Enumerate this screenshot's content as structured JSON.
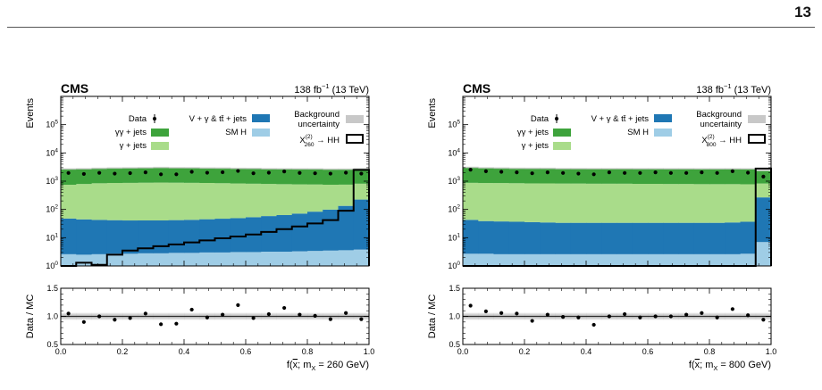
{
  "page_number": "13",
  "colors": {
    "data": "#000000",
    "gg_jets": "#3ea33c",
    "g_jets": "#a9dc8a",
    "vg": "#1f77b4",
    "smh": "#9fcde6",
    "uncertainty": "#c8c8c8",
    "signal": "#000000"
  },
  "chart_data": [
    {
      "type": "area",
      "experiment": "CMS",
      "lumi": "138 fb",
      "lumi_sup": "−1",
      "energy": " (13 TeV)",
      "ylabel": "Events",
      "xlabel_prefix": "f(",
      "xlabel_sym": "x",
      "xlabel_mid": "; m",
      "xlabel_sub": "X",
      "xlabel_suffix": " = 260 GeV)",
      "ratio_ylabel": "Data / MC",
      "yscale": "log",
      "ylim": [
        1,
        1000000
      ],
      "xlim": [
        0,
        1
      ],
      "ratio_ylim": [
        0.5,
        1.5
      ],
      "xticks": [
        "0.0",
        "0.2",
        "0.4",
        "0.6",
        "0.8",
        "1.0"
      ],
      "yticks": [
        "10",
        "10",
        "10",
        "10",
        "10",
        "10"
      ],
      "ytick_exps": [
        "0",
        "1",
        "2",
        "3",
        "4",
        "5"
      ],
      "ratio_yticks": [
        "0.5",
        "1.0",
        "1.5"
      ],
      "legend": {
        "data": "Data",
        "gg_jets": "γγ + jets",
        "g_jets": "γ + jets",
        "vg": "V + γ & tt̄ + jets",
        "smh": "SM H",
        "unc_line1": "Background",
        "unc_line2": "uncertainty",
        "signal_prefix": "X",
        "signal_sup": "(2)",
        "signal_sub": "260",
        "signal_suffix": " → HH"
      },
      "bins": 20,
      "stack": {
        "smh": [
          2.6,
          2.5,
          2.6,
          2.7,
          2.7,
          2.8,
          2.8,
          2.9,
          2.9,
          3.0,
          3.0,
          3.1,
          3.1,
          3.2,
          3.2,
          3.3,
          3.4,
          3.5,
          3.6,
          3.8
        ],
        "vg": [
          45,
          42,
          40,
          39,
          38,
          38,
          38,
          39,
          40,
          42,
          44,
          46,
          50,
          55,
          60,
          68,
          80,
          95,
          130,
          220
        ],
        "g_jets": [
          700,
          750,
          800,
          820,
          830,
          840,
          850,
          840,
          830,
          820,
          800,
          780,
          760,
          740,
          720,
          700,
          680,
          650,
          620,
          590
        ],
        "gg_jets": [
          1950,
          1950,
          2000,
          2050,
          2080,
          2100,
          2150,
          2100,
          2100,
          2050,
          2050,
          2000,
          2000,
          1950,
          1950,
          1950,
          1950,
          1900,
          1900,
          1950
        ]
      },
      "signal": [
        0,
        1.3,
        1.1,
        2.5,
        3.5,
        4.2,
        5.0,
        5.8,
        6.8,
        8.0,
        9.5,
        11,
        13,
        16,
        20,
        25,
        32,
        42,
        90,
        2500
      ],
      "data": [
        1950,
        1800,
        1970,
        1850,
        1920,
        2050,
        1750,
        1750,
        2150,
        1990,
        2070,
        2300,
        1900,
        2000,
        2200,
        1960,
        1900,
        1850,
        2000,
        1850
      ],
      "ratio": [
        1.05,
        0.9,
        1.0,
        0.94,
        0.97,
        1.05,
        0.86,
        0.87,
        1.12,
        0.98,
        1.03,
        1.2,
        0.97,
        1.04,
        1.15,
        1.03,
        1.01,
        0.95,
        1.06,
        0.95
      ]
    },
    {
      "type": "area",
      "experiment": "CMS",
      "lumi": "138 fb",
      "lumi_sup": "−1",
      "energy": " (13 TeV)",
      "ylabel": "Events",
      "xlabel_prefix": "f(",
      "xlabel_sym": "x",
      "xlabel_mid": "; m",
      "xlabel_sub": "X",
      "xlabel_suffix": " = 800 GeV)",
      "ratio_ylabel": "Data / MC",
      "yscale": "log",
      "ylim": [
        1,
        1000000
      ],
      "xlim": [
        0,
        1
      ],
      "ratio_ylim": [
        0.5,
        1.5
      ],
      "xticks": [
        "0.0",
        "0.2",
        "0.4",
        "0.6",
        "0.8",
        "1.0"
      ],
      "yticks": [
        "10",
        "10",
        "10",
        "10",
        "10",
        "10"
      ],
      "ytick_exps": [
        "0",
        "1",
        "2",
        "3",
        "4",
        "5"
      ],
      "ratio_yticks": [
        "0.5",
        "1.0",
        "1.5"
      ],
      "legend": {
        "data": "Data",
        "gg_jets": "γγ + jets",
        "g_jets": "γ + jets",
        "vg": "V + γ & tt̄ + jets",
        "smh": "SM H",
        "unc_line1": "Background",
        "unc_line2": "uncertainty",
        "signal_prefix": "X",
        "signal_sup": "(2)",
        "signal_sub": "800",
        "signal_suffix": " → HH"
      },
      "bins": 20,
      "stack": {
        "smh": [
          2.7,
          2.7,
          2.6,
          2.6,
          2.6,
          2.6,
          2.6,
          2.6,
          2.6,
          2.6,
          2.6,
          2.6,
          2.6,
          2.6,
          2.6,
          2.6,
          2.6,
          2.6,
          2.7,
          7.0
        ],
        "vg": [
          40,
          36,
          35,
          34,
          33,
          32,
          31,
          31,
          31,
          31,
          31,
          31,
          31,
          31,
          31,
          31,
          31,
          32,
          34,
          260
        ],
        "g_jets": [
          830,
          820,
          820,
          810,
          800,
          800,
          790,
          790,
          780,
          780,
          780,
          770,
          770,
          760,
          760,
          750,
          750,
          750,
          740,
          560
        ],
        "gg_jets": [
          2200,
          2100,
          2050,
          2000,
          2000,
          2000,
          1950,
          1950,
          1950,
          1950,
          1950,
          1950,
          1950,
          1950,
          1950,
          1950,
          1950,
          1950,
          1950,
          1550
        ]
      },
      "signal": [
        0,
        0,
        0,
        0,
        0,
        0,
        0,
        0,
        0,
        0,
        0,
        0,
        0,
        0,
        0,
        0,
        0,
        0,
        0,
        2800
      ],
      "data": [
        2550,
        2250,
        2150,
        2050,
        1900,
        2050,
        1950,
        1850,
        1750,
        2050,
        1950,
        1950,
        2050,
        1950,
        1950,
        2050,
        1950,
        2250,
        2000,
        1450
      ],
      "ratio": [
        1.19,
        1.09,
        1.06,
        1.05,
        0.92,
        1.03,
        0.99,
        0.98,
        0.85,
        1.0,
        1.04,
        0.98,
        1.0,
        1.0,
        1.03,
        1.06,
        0.98,
        1.13,
        1.02,
        0.94
      ]
    }
  ]
}
